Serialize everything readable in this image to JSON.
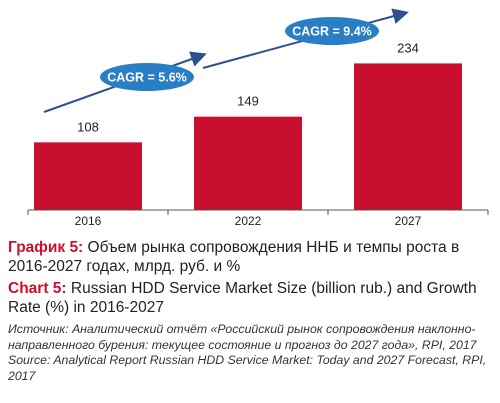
{
  "chart_data": {
    "type": "bar",
    "categories": [
      "2016",
      "2022",
      "2027"
    ],
    "values": [
      108,
      149,
      234
    ],
    "data_labels": [
      "108",
      "149",
      "234"
    ],
    "ylim": [
      0,
      260
    ],
    "grid": false,
    "legend": "none",
    "bar_color": "#c8102e",
    "annotations": [
      {
        "text": "CAGR = 5.6%",
        "from": "2016",
        "to": "2022"
      },
      {
        "text": "CAGR = 9.4%",
        "from": "2022",
        "to": "2027"
      }
    ],
    "annotation_color": "#2a7fc4"
  },
  "caption": {
    "ru_label": "График 5:",
    "ru_text": " Объем рынка сопровождения ННБ и темпы роста в 2016-2027 годах, млрд. руб. и %",
    "en_label": "Chart 5:",
    "en_text": " Russian HDD Service Market Size (billion rub.) and Growth Rate (%) in 2016-2027"
  },
  "source": {
    "ru": "Источник: Аналитический отчёт «Российский рынок сопровождения наклонно-направленного бурения:  текущее состояние и прогноз до 2027 года», RPI, 2017",
    "en": "Source: Analytical Report Russian HDD Service Market:  Today and 2027 Forecast, RPI, 2017"
  }
}
